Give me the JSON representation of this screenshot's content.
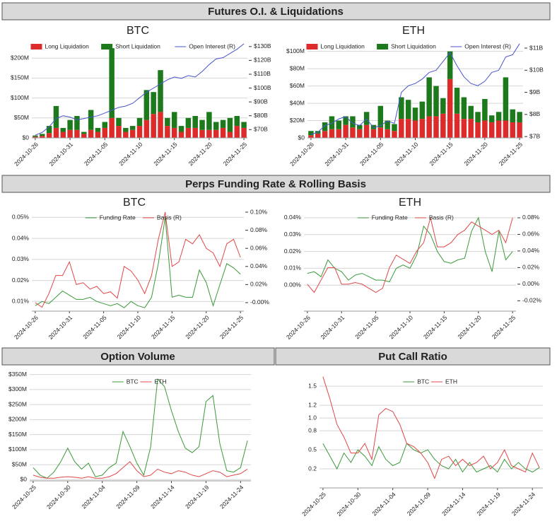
{
  "sections": [
    "Futures O.I. & Liquidations",
    "Perps Funding Rate & Rolling Basis"
  ],
  "chart_data": [
    {
      "type": "bar",
      "stacked": true,
      "title": "BTC",
      "categories": [
        "2024-10-26",
        null,
        null,
        null,
        null,
        "2024-10-31",
        null,
        null,
        null,
        null,
        "2024-11-05",
        null,
        null,
        null,
        null,
        "2024-11-10",
        null,
        null,
        null,
        null,
        "2024-11-15",
        null,
        null,
        null,
        null,
        "2024-11-20",
        null,
        null,
        null,
        null,
        "2024-11-25"
      ],
      "ylim": [
        0,
        243
      ],
      "yticks": [
        {
          "value": 0,
          "label": "$0"
        },
        {
          "value": 50,
          "label": "$50M"
        },
        {
          "value": 100,
          "label": "$100M"
        },
        {
          "value": 150,
          "label": "$150M"
        },
        {
          "value": 200,
          "label": "$200M"
        }
      ],
      "y2lim": [
        64,
        134
      ],
      "y2ticks": [
        {
          "value": 70,
          "label": "$70B"
        },
        {
          "value": 80,
          "label": "$80B"
        },
        {
          "value": 90,
          "label": "$90B"
        },
        {
          "value": 100,
          "label": "$100B"
        },
        {
          "value": 110,
          "label": "$110B"
        },
        {
          "value": 120,
          "label": "$120B"
        },
        {
          "value": 130,
          "label": "$130B"
        }
      ],
      "grid": true,
      "series": [
        {
          "name": "Long Liquidation",
          "color": "#dd2a2a",
          "values": [
            3,
            5,
            12,
            25,
            15,
            20,
            20,
            10,
            20,
            15,
            25,
            50,
            30,
            15,
            20,
            30,
            45,
            60,
            65,
            30,
            25,
            15,
            25,
            25,
            20,
            20,
            20,
            25,
            15,
            30,
            25
          ]
        },
        {
          "name": "Short Liquidation",
          "color": "#1c7a1c",
          "values": [
            3,
            5,
            18,
            55,
            10,
            25,
            35,
            5,
            50,
            10,
            15,
            175,
            20,
            10,
            10,
            20,
            75,
            55,
            105,
            20,
            40,
            15,
            25,
            30,
            25,
            45,
            20,
            20,
            35,
            25,
            15
          ]
        },
        {
          "name": "Open Interest (R)",
          "type": "line",
          "axis": "y2",
          "color": "#4a55cc",
          "values": [
            66,
            68,
            72,
            78,
            80,
            79,
            77,
            78,
            79,
            80,
            82,
            84,
            86,
            87,
            89,
            93,
            97,
            100,
            103,
            106,
            108,
            107,
            109,
            108,
            112,
            117,
            121,
            122,
            125,
            128,
            132
          ]
        }
      ]
    },
    {
      "type": "bar",
      "stacked": true,
      "title": "ETH",
      "categories": [
        "2024-10-26",
        null,
        null,
        null,
        null,
        "2024-10-31",
        null,
        null,
        null,
        null,
        "2024-11-05",
        null,
        null,
        null,
        null,
        "2024-11-10",
        null,
        null,
        null,
        null,
        "2024-11-15",
        null,
        null,
        null,
        null,
        "2024-11-20",
        null,
        null,
        null,
        null,
        "2024-11-25"
      ],
      "ylim": [
        0,
        112
      ],
      "yticks": [
        {
          "value": 0,
          "label": "$0"
        },
        {
          "value": 20,
          "label": "$20M"
        },
        {
          "value": 40,
          "label": "$40M"
        },
        {
          "value": 60,
          "label": "$60M"
        },
        {
          "value": 80,
          "label": "$80M"
        },
        {
          "value": 100,
          "label": "$100M"
        }
      ],
      "y2lim": [
        6.94,
        11.32
      ],
      "y2ticks": [
        {
          "value": 7,
          "label": "$7B"
        },
        {
          "value": 8,
          "label": "$8B"
        },
        {
          "value": 9,
          "label": "$9B"
        },
        {
          "value": 10,
          "label": "$10B"
        },
        {
          "value": 11,
          "label": "$11B"
        }
      ],
      "grid": true,
      "series": [
        {
          "name": "Long Liquidation",
          "color": "#dd2a2a",
          "values": [
            3,
            5,
            8,
            10,
            10,
            15,
            12,
            10,
            15,
            10,
            12,
            10,
            8,
            22,
            22,
            20,
            22,
            25,
            25,
            28,
            68,
            28,
            22,
            22,
            18,
            20,
            18,
            20,
            20,
            18,
            18
          ]
        },
        {
          "name": "Short Liquidation",
          "color": "#1c7a1c",
          "values": [
            5,
            3,
            10,
            15,
            10,
            10,
            13,
            5,
            15,
            5,
            25,
            10,
            8,
            25,
            22,
            15,
            20,
            45,
            35,
            18,
            32,
            30,
            25,
            15,
            12,
            25,
            8,
            10,
            50,
            15,
            12
          ]
        },
        {
          "name": "Open Interest (R)",
          "type": "line",
          "axis": "y2",
          "color": "#4a55cc",
          "values": [
            7.1,
            7.2,
            7.5,
            7.6,
            7.8,
            7.9,
            7.6,
            7.5,
            7.8,
            7.4,
            7.5,
            7.7,
            7.6,
            9.0,
            9.3,
            9.4,
            9.6,
            9.9,
            10.0,
            10.4,
            10.8,
            10.2,
            9.7,
            9.4,
            9.3,
            9.5,
            9.9,
            10.0,
            10.6,
            10.7,
            11.2
          ]
        }
      ]
    },
    {
      "type": "line",
      "title": "BTC",
      "categories": [
        "2024-10-26",
        null,
        null,
        null,
        null,
        "2024-10-31",
        null,
        null,
        null,
        null,
        "2024-11-05",
        null,
        null,
        null,
        null,
        "2024-11-10",
        null,
        null,
        null,
        null,
        "2024-11-15",
        null,
        null,
        null,
        null,
        "2024-11-20",
        null,
        null,
        null,
        null,
        "2024-11-25"
      ],
      "ylim": [
        0.0054,
        0.0525
      ],
      "yticks": [
        {
          "value": 0.01,
          "label": "0.01%"
        },
        {
          "value": 0.02,
          "label": "0.02%"
        },
        {
          "value": 0.03,
          "label": "0.03%"
        },
        {
          "value": 0.04,
          "label": "0.04%"
        },
        {
          "value": 0.05,
          "label": "0.05%"
        }
      ],
      "y2lim": [
        -0.0094,
        0.1
      ],
      "y2ticks": [
        {
          "value": 0,
          "label": "-0.00%"
        },
        {
          "value": 0.02,
          "label": "0.02%"
        },
        {
          "value": 0.04,
          "label": "0.04%"
        },
        {
          "value": 0.06,
          "label": "0.06%"
        },
        {
          "value": 0.08,
          "label": "0.08%"
        },
        {
          "value": 0.1,
          "label": "0.10%"
        }
      ],
      "grid": true,
      "series": [
        {
          "name": "Funding Rate",
          "color": "#3a9a3a",
          "values": [
            0.008,
            0.01,
            0.009,
            0.012,
            0.015,
            0.013,
            0.011,
            0.011,
            0.012,
            0.01,
            0.009,
            0.008,
            0.009,
            0.007,
            0.01,
            0.008,
            0.007,
            0.012,
            0.028,
            0.05,
            0.012,
            0.013,
            0.012,
            0.012,
            0.025,
            0.019,
            0.008,
            0.018,
            0.028,
            0.026,
            0.023
          ]
        },
        {
          "name": "Basis (R)",
          "axis": "y2",
          "color": "#e04848",
          "values": [
            0.0,
            -0.005,
            0.01,
            0.03,
            0.03,
            0.045,
            0.02,
            0.022,
            0.015,
            0.018,
            0.01,
            0.012,
            0.005,
            0.04,
            0.035,
            0.025,
            0.01,
            0.03,
            0.07,
            0.1,
            0.04,
            0.045,
            0.07,
            0.065,
            0.075,
            0.06,
            0.055,
            0.04,
            0.065,
            0.07,
            0.05
          ]
        }
      ]
    },
    {
      "type": "line",
      "title": "ETH",
      "categories": [
        "2024-10-26",
        null,
        null,
        null,
        null,
        "2024-10-31",
        null,
        null,
        null,
        null,
        "2024-11-05",
        null,
        null,
        null,
        null,
        "2024-11-10",
        null,
        null,
        null,
        null,
        "2024-11-15",
        null,
        null,
        null,
        null,
        "2024-11-20",
        null,
        null,
        null,
        null,
        "2024-11-25"
      ],
      "ylim": [
        -0.0154,
        0.0433
      ],
      "yticks": [
        {
          "value": 0,
          "label": "0.00%"
        },
        {
          "value": 0.01,
          "label": "0.01%"
        },
        {
          "value": 0.02,
          "label": "0.02%"
        },
        {
          "value": 0.03,
          "label": "0.03%"
        },
        {
          "value": 0.04,
          "label": "0.04%"
        }
      ],
      "y2lim": [
        -0.0325,
        0.0868
      ],
      "y2ticks": [
        {
          "value": -0.02,
          "label": "-0.02%"
        },
        {
          "value": 0,
          "label": "0.00%"
        },
        {
          "value": 0.02,
          "label": "0.02%"
        },
        {
          "value": 0.04,
          "label": "0.04%"
        },
        {
          "value": 0.06,
          "label": "0.06%"
        },
        {
          "value": 0.08,
          "label": "0.08%"
        }
      ],
      "grid": true,
      "series": [
        {
          "name": "Funding Rate",
          "color": "#3a9a3a",
          "values": [
            0.007,
            0.008,
            0.005,
            0.015,
            0.01,
            0.008,
            0.003,
            0.006,
            0.007,
            0.005,
            0.003,
            0.003,
            0.002,
            0.01,
            0.012,
            0.01,
            0.018,
            0.035,
            0.03,
            0.02,
            0.014,
            0.013,
            0.015,
            0.016,
            0.032,
            0.04,
            0.02,
            0.008,
            0.032,
            0.015,
            0.02
          ]
        },
        {
          "name": "Basis (R)",
          "axis": "y2",
          "color": "#e04848",
          "values": [
            0.0,
            -0.01,
            0.005,
            0.02,
            0.02,
            0.0,
            0.0,
            0.002,
            0.0,
            -0.005,
            -0.01,
            -0.005,
            0.02,
            0.035,
            0.03,
            0.025,
            0.04,
            0.05,
            0.08,
            0.045,
            0.045,
            0.05,
            0.06,
            0.065,
            0.075,
            0.07,
            0.065,
            0.06,
            0.065,
            0.05,
            0.08
          ]
        }
      ]
    },
    {
      "type": "line",
      "title": "Option Volume",
      "categories": [
        "2024-10-25",
        null,
        null,
        null,
        null,
        "2024-10-30",
        null,
        null,
        null,
        null,
        "2024-11-04",
        null,
        null,
        null,
        null,
        "2024-11-09",
        null,
        null,
        null,
        null,
        "2024-11-14",
        null,
        null,
        null,
        null,
        "2024-11-19",
        null,
        null,
        null,
        null,
        "2024-11-24",
        null
      ],
      "ylim": [
        -4,
        368
      ],
      "yticks": [
        {
          "value": 0,
          "label": "$0"
        },
        {
          "value": 50,
          "label": "$50M"
        },
        {
          "value": 100,
          "label": "$100M"
        },
        {
          "value": 150,
          "label": "$150M"
        },
        {
          "value": 200,
          "label": "$200M"
        },
        {
          "value": 250,
          "label": "$250M"
        },
        {
          "value": 300,
          "label": "$300M"
        },
        {
          "value": 350,
          "label": "$350M"
        }
      ],
      "grid": true,
      "series": [
        {
          "name": "BTC",
          "color": "#3a9a3a",
          "values": [
            40,
            15,
            5,
            25,
            60,
            105,
            60,
            35,
            55,
            10,
            15,
            40,
            55,
            160,
            110,
            55,
            15,
            110,
            335,
            310,
            230,
            160,
            105,
            90,
            110,
            260,
            280,
            120,
            30,
            25,
            40,
            130
          ]
        },
        {
          "name": "ETH",
          "color": "#e04848",
          "values": [
            15,
            8,
            5,
            5,
            8,
            10,
            8,
            5,
            10,
            5,
            5,
            10,
            20,
            40,
            60,
            30,
            10,
            15,
            35,
            25,
            20,
            30,
            25,
            15,
            10,
            20,
            30,
            25,
            10,
            15,
            20,
            35
          ]
        }
      ]
    },
    {
      "type": "line",
      "title": "Put Call Ratio",
      "categories": [
        "2024-10-25",
        null,
        null,
        null,
        null,
        "2024-10-30",
        null,
        null,
        null,
        null,
        "2024-11-04",
        null,
        null,
        null,
        null,
        "2024-11-09",
        null,
        null,
        null,
        null,
        "2024-11-14",
        null,
        null,
        null,
        null,
        "2024-11-19",
        null,
        null,
        null,
        null,
        "2024-11-24",
        null
      ],
      "ylim": [
        -0.1,
        1.68
      ],
      "yticks": [
        0.2,
        0.5,
        0.8,
        {
          "value": 1,
          "label": "1.0"
        },
        1.2,
        1.5
      ],
      "grid": true,
      "series": [
        {
          "name": "BTC",
          "color": "#3a9a3a",
          "values": [
            0.6,
            0.4,
            0.2,
            0.45,
            0.3,
            0.5,
            0.4,
            0.25,
            0.55,
            0.35,
            0.25,
            0.3,
            0.6,
            0.5,
            0.45,
            0.5,
            0.35,
            0.25,
            0.2,
            0.35,
            0.15,
            0.3,
            0.15,
            0.2,
            0.25,
            0.15,
            0.35,
            0.2,
            0.3,
            0.2,
            0.15,
            0.22
          ]
        },
        {
          "name": "ETH",
          "color": "#e04848",
          "values": [
            1.65,
            1.3,
            0.9,
            0.7,
            0.45,
            0.45,
            0.6,
            0.35,
            1.05,
            1.15,
            1.1,
            0.9,
            0.6,
            0.55,
            0.45,
            0.3,
            0.05,
            0.35,
            0.4,
            0.25,
            0.35,
            0.25,
            0.3,
            0.4,
            0.2,
            0.3,
            0.5,
            0.25,
            0.2,
            0.15,
            0.45,
            0.22
          ]
        }
      ]
    }
  ]
}
